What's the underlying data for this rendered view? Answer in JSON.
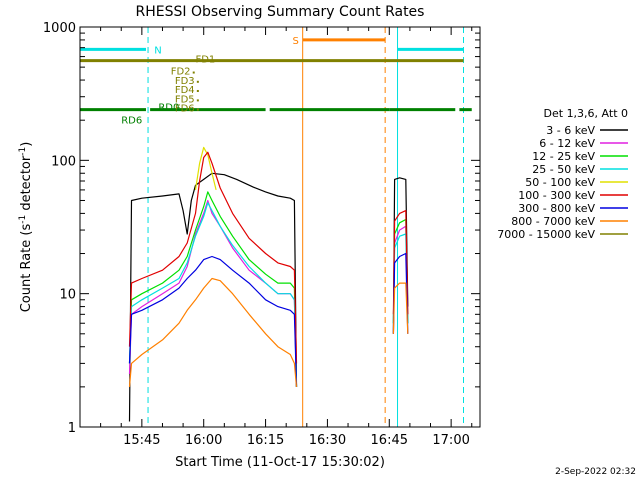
{
  "chart_data": {
    "type": "line",
    "title": "RHESSI Observing Summary Count Rates",
    "xlabel": "Start Time (11-Oct-17 15:30:02)",
    "ylabel_main": "Count Rate (s",
    "ylabel_sup1": "-1",
    "ylabel_mid": " detector",
    "ylabel_sup2": "-1",
    "ylabel_end": ")",
    "footer": "2-Sep-2022 02:32",
    "x_axis": {
      "unit": "minutes since 15:30:02",
      "xlim": [
        0,
        97
      ],
      "ticks": [
        {
          "x": 15,
          "label": "15:45"
        },
        {
          "x": 30,
          "label": "16:00"
        },
        {
          "x": 45,
          "label": "16:15"
        },
        {
          "x": 60,
          "label": "16:30"
        },
        {
          "x": 75,
          "label": "16:45"
        },
        {
          "x": 90,
          "label": "17:00"
        }
      ]
    },
    "y_axis": {
      "scale": "log",
      "ylim": [
        1,
        1000
      ],
      "ticks": [
        {
          "y": 1,
          "label": "1"
        },
        {
          "y": 10,
          "label": "10"
        },
        {
          "y": 100,
          "label": "100"
        },
        {
          "y": 1000,
          "label": "1000"
        }
      ]
    },
    "legend": {
      "placement": "right",
      "header": "Det 1,3,6, Att 0",
      "entries": [
        {
          "label": "3 - 6 keV",
          "color": "#000000"
        },
        {
          "label": "6 - 12 keV",
          "color": "#e020e0"
        },
        {
          "label": "12 - 25 keV",
          "color": "#00e000"
        },
        {
          "label": "25 - 50 keV",
          "color": "#00e0e0"
        },
        {
          "label": "50 - 100 keV",
          "color": "#e0e000"
        },
        {
          "label": "100 - 300 keV",
          "color": "#e00000"
        },
        {
          "label": "300 - 800 keV",
          "color": "#0000e0"
        },
        {
          "label": "800 - 7000 keV",
          "color": "#ff8000"
        },
        {
          "label": "7000 - 15000 keV",
          "color": "#808000"
        }
      ]
    },
    "flags": {
      "S": {
        "label": "S",
        "color": "#ff8000",
        "y": 800,
        "segments": [
          [
            54,
            74
          ]
        ]
      },
      "N": {
        "label": "N",
        "color": "#00e0e0",
        "y": 680,
        "segments": [
          [
            0,
            16
          ],
          [
            77,
            93
          ]
        ]
      },
      "FD1": {
        "label": "FD1",
        "color": "#808000",
        "y": 560,
        "segments": [
          [
            0,
            93
          ]
        ]
      },
      "RD6": {
        "label": "RD6",
        "color": "#008000",
        "y": 240,
        "segments": [
          [
            0,
            16
          ],
          [
            17,
            45
          ],
          [
            46,
            75
          ],
          [
            75,
            91
          ],
          [
            92,
            95
          ]
        ]
      },
      "FD_labels": [
        {
          "label": "FD2",
          "y": 440,
          "x": 22
        },
        {
          "label": "FD3",
          "y": 375,
          "x": 23
        },
        {
          "label": "FD4",
          "y": 320,
          "x": 23
        },
        {
          "label": "FD5",
          "y": 272,
          "x": 23
        },
        {
          "label": "FD6",
          "y": 232,
          "x": 23
        },
        {
          "label": "RD0",
          "y": 236,
          "x": 19
        }
      ]
    },
    "vlines": [
      {
        "x": 0,
        "color": "#00e0e0",
        "style": "solid"
      },
      {
        "x": 16.5,
        "color": "#00e0e0",
        "style": "dashed"
      },
      {
        "x": 54,
        "color": "#ff8000",
        "style": "solid"
      },
      {
        "x": 74,
        "color": "#ff8000",
        "style": "dashed"
      },
      {
        "x": 77,
        "color": "#00e0e0",
        "style": "solid"
      },
      {
        "x": 93,
        "color": "#00e0e0",
        "style": "dashed"
      }
    ],
    "series": [
      {
        "name": "3 - 6 keV",
        "color": "#000000",
        "segments": [
          [
            [
              12,
              1.1
            ],
            [
              12.5,
              50
            ],
            [
              15,
              52
            ],
            [
              20,
              54
            ],
            [
              24,
              56
            ],
            [
              25,
              42
            ],
            [
              26,
              28
            ],
            [
              27,
              50
            ],
            [
              28,
              65
            ],
            [
              30,
              72
            ],
            [
              32,
              80
            ],
            [
              35,
              78
            ],
            [
              38,
              72
            ],
            [
              42,
              63
            ],
            [
              45,
              58
            ],
            [
              48,
              54
            ],
            [
              51,
              52
            ],
            [
              52,
              50
            ],
            [
              52.5,
              2
            ]
          ],
          [
            [
              76,
              5
            ],
            [
              76.3,
              72
            ],
            [
              77.5,
              74
            ],
            [
              79,
              72
            ],
            [
              79.5,
              8
            ]
          ]
        ]
      },
      {
        "name": "6 - 12 keV",
        "color": "#e020e0",
        "segments": [
          [
            [
              12,
              2.5
            ],
            [
              12.5,
              7
            ],
            [
              15,
              8
            ],
            [
              20,
              10
            ],
            [
              24,
              12
            ],
            [
              26,
              16
            ],
            [
              28,
              28
            ],
            [
              30,
              40
            ],
            [
              31,
              50
            ],
            [
              32,
              40
            ],
            [
              34,
              32
            ],
            [
              37,
              22
            ],
            [
              41,
              15
            ],
            [
              45,
              12
            ],
            [
              48,
              10
            ],
            [
              51,
              10
            ],
            [
              52,
              9
            ],
            [
              52.5,
              2
            ]
          ],
          [
            [
              76,
              6
            ],
            [
              76.3,
              24
            ],
            [
              77.5,
              30
            ],
            [
              79,
              32
            ],
            [
              79.5,
              6
            ]
          ]
        ]
      },
      {
        "name": "12 - 25 keV",
        "color": "#00e000",
        "segments": [
          [
            [
              12,
              3
            ],
            [
              12.5,
              9
            ],
            [
              15,
              10
            ],
            [
              20,
              12
            ],
            [
              24,
              15
            ],
            [
              26,
              19
            ],
            [
              28,
              30
            ],
            [
              30,
              45
            ],
            [
              31,
              58
            ],
            [
              32,
              50
            ],
            [
              34,
              38
            ],
            [
              37,
              27
            ],
            [
              41,
              18
            ],
            [
              45,
              14
            ],
            [
              48,
              12
            ],
            [
              51,
              12
            ],
            [
              52,
              11
            ],
            [
              52.5,
              2
            ]
          ],
          [
            [
              76,
              6
            ],
            [
              76.3,
              28
            ],
            [
              77.5,
              34
            ],
            [
              79,
              36
            ],
            [
              79.5,
              6
            ]
          ]
        ]
      },
      {
        "name": "25 - 50 keV",
        "color": "#00e0e0",
        "segments": [
          [
            [
              12,
              3
            ],
            [
              12.5,
              8
            ],
            [
              15,
              9
            ],
            [
              20,
              11
            ],
            [
              24,
              13
            ],
            [
              26,
              17
            ],
            [
              28,
              27
            ],
            [
              30,
              38
            ],
            [
              31,
              48
            ],
            [
              32,
              42
            ],
            [
              34,
              32
            ],
            [
              37,
              23
            ],
            [
              41,
              16
            ],
            [
              45,
              12
            ],
            [
              48,
              10
            ],
            [
              51,
              10
            ],
            [
              52,
              9
            ],
            [
              52.5,
              2
            ]
          ],
          [
            [
              76,
              6
            ],
            [
              76.3,
              22
            ],
            [
              77.5,
              27
            ],
            [
              79,
              28
            ],
            [
              79.5,
              6
            ]
          ]
        ]
      },
      {
        "name": "50 - 100 keV",
        "color": "#e0e000",
        "segments": [
          [
            [
              28,
              60
            ],
            [
              29,
              95
            ],
            [
              30,
              125
            ],
            [
              31,
              110
            ],
            [
              32,
              80
            ],
            [
              33,
              60
            ]
          ]
        ]
      },
      {
        "name": "100 - 300 keV",
        "color": "#e00000",
        "segments": [
          [
            [
              12,
              4
            ],
            [
              12.5,
              12
            ],
            [
              15,
              13
            ],
            [
              20,
              15
            ],
            [
              24,
              19
            ],
            [
              26,
              24
            ],
            [
              28,
              40
            ],
            [
              29,
              70
            ],
            [
              30,
              105
            ],
            [
              31,
              115
            ],
            [
              32,
              95
            ],
            [
              34,
              62
            ],
            [
              37,
              40
            ],
            [
              41,
              26
            ],
            [
              45,
              20
            ],
            [
              48,
              17
            ],
            [
              51,
              16
            ],
            [
              52,
              15
            ],
            [
              52.5,
              3
            ]
          ],
          [
            [
              76,
              7
            ],
            [
              76.3,
              35
            ],
            [
              77.5,
              40
            ],
            [
              79,
              42
            ],
            [
              79.5,
              7
            ]
          ]
        ]
      },
      {
        "name": "300 - 800 keV",
        "color": "#0000e0",
        "segments": [
          [
            [
              12,
              3
            ],
            [
              12.5,
              7
            ],
            [
              15,
              7.5
            ],
            [
              20,
              9
            ],
            [
              24,
              11
            ],
            [
              26,
              13
            ],
            [
              28,
              15
            ],
            [
              30,
              18
            ],
            [
              32,
              19
            ],
            [
              34,
              18
            ],
            [
              37,
              15
            ],
            [
              41,
              12
            ],
            [
              45,
              9
            ],
            [
              48,
              8
            ],
            [
              51,
              7.5
            ],
            [
              52,
              7
            ],
            [
              52.5,
              2
            ]
          ],
          [
            [
              76,
              5
            ],
            [
              76.3,
              17
            ],
            [
              77.5,
              19
            ],
            [
              79,
              20
            ],
            [
              79.5,
              5
            ]
          ]
        ]
      },
      {
        "name": "800 - 7000 keV",
        "color": "#ff8000",
        "segments": [
          [
            [
              12,
              2
            ],
            [
              12.5,
              3
            ],
            [
              15,
              3.5
            ],
            [
              20,
              4.5
            ],
            [
              24,
              6
            ],
            [
              26,
              7.5
            ],
            [
              28,
              9
            ],
            [
              30,
              11
            ],
            [
              32,
              13
            ],
            [
              34,
              12.5
            ],
            [
              37,
              10
            ],
            [
              41,
              7
            ],
            [
              45,
              5
            ],
            [
              48,
              4
            ],
            [
              51,
              3.5
            ],
            [
              52,
              3
            ],
            [
              52.5,
              2
            ]
          ],
          [
            [
              76,
              5
            ],
            [
              76.3,
              11
            ],
            [
              77.5,
              12
            ],
            [
              79,
              12
            ],
            [
              79.5,
              5
            ]
          ]
        ]
      }
    ]
  }
}
